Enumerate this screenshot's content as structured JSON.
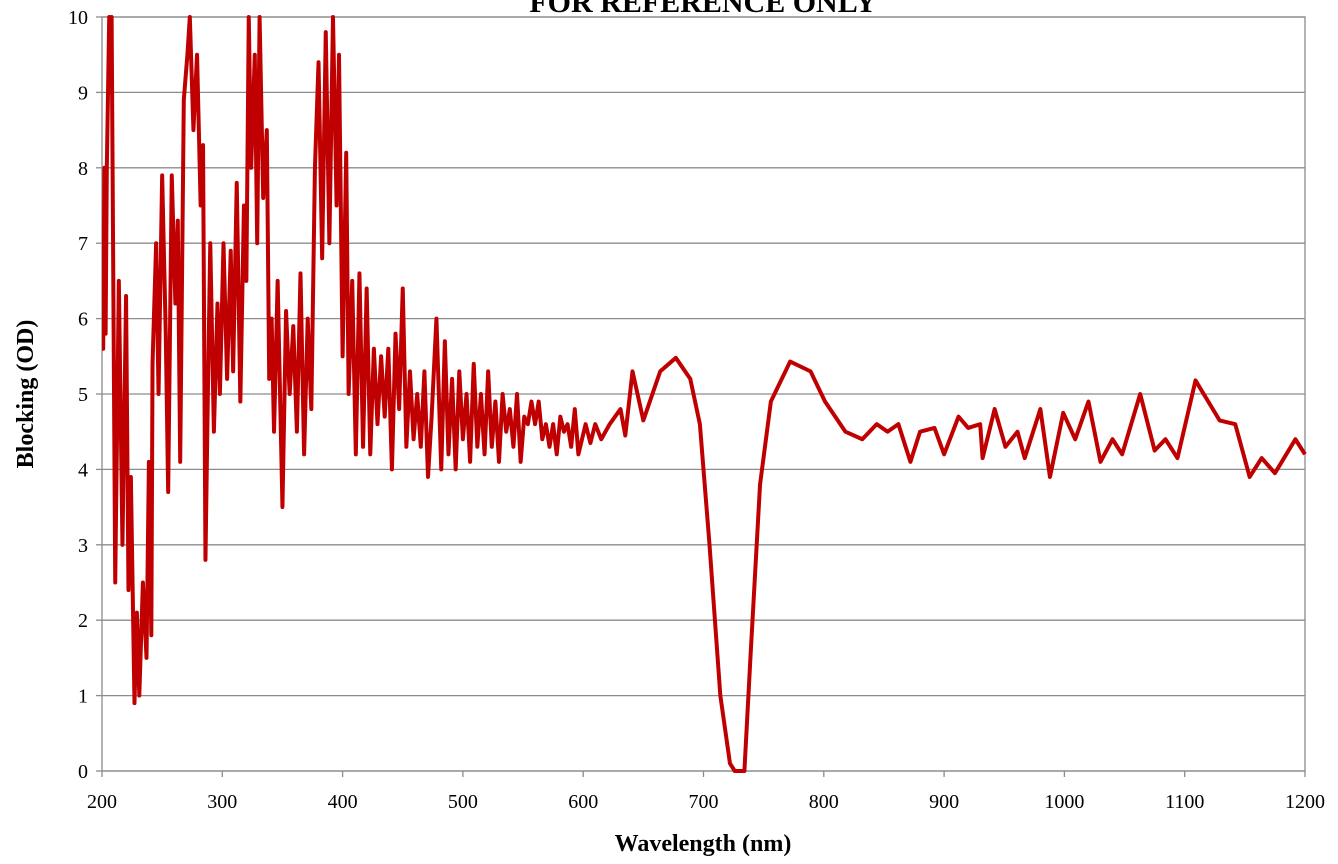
{
  "chart_data": {
    "type": "line",
    "title": "FOR REFERENCE ONLY",
    "x_label": "Wavelength (nm)",
    "y_label": "Blocking (OD)",
    "xlim": [
      200,
      1200
    ],
    "xticks": [
      200,
      300,
      400,
      500,
      600,
      700,
      800,
      900,
      1000,
      1100,
      1200
    ],
    "ylim": [
      0,
      10
    ],
    "yticks": [
      0,
      1,
      2,
      3,
      4,
      5,
      6,
      7,
      8,
      9,
      10
    ],
    "grid": true,
    "x": [
      200,
      201,
      202,
      203,
      204,
      206,
      207,
      208,
      211,
      214,
      217,
      220,
      222,
      224,
      227,
      229,
      231,
      234,
      237,
      239,
      241,
      242,
      245,
      247,
      250,
      253,
      255,
      258,
      261,
      263,
      265,
      268,
      271,
      273,
      276,
      279,
      282,
      284,
      286,
      288,
      290,
      293,
      296,
      298,
      301,
      304,
      307,
      309,
      312,
      315,
      318,
      320,
      322,
      324,
      327,
      329,
      331,
      334,
      337,
      339,
      341,
      343,
      346,
      350,
      353,
      356,
      359,
      362,
      365,
      368,
      371,
      374,
      377,
      380,
      383,
      386,
      389,
      392,
      395,
      397,
      400,
      403,
      405,
      408,
      411,
      414,
      417,
      420,
      423,
      426,
      429,
      432,
      435,
      438,
      441,
      444,
      447,
      450,
      453,
      456,
      459,
      462,
      465,
      468,
      471,
      474,
      478,
      482,
      485,
      488,
      491,
      494,
      497,
      500,
      503,
      506,
      509,
      512,
      515,
      518,
      521,
      524,
      527,
      530,
      533,
      536,
      539,
      542,
      545,
      548,
      551,
      554,
      557,
      560,
      563,
      566,
      569,
      572,
      575,
      578,
      581,
      584,
      587,
      590,
      593,
      596,
      599,
      602,
      606,
      610,
      615,
      622,
      631,
      635,
      641,
      650,
      664,
      677,
      689,
      697,
      705,
      714,
      722,
      726,
      734,
      739,
      747,
      756,
      772,
      789,
      801,
      818,
      832,
      844,
      853,
      862,
      872,
      880,
      892,
      900,
      912,
      920,
      930,
      932,
      942,
      951,
      961,
      967,
      980,
      988,
      999,
      1009,
      1020,
      1030,
      1040,
      1048,
      1063,
      1075,
      1084,
      1094,
      1109,
      1129,
      1142,
      1154,
      1164,
      1175,
      1192,
      1200
    ],
    "series": [
      {
        "color": "#c00000",
        "values": [
          6.5,
          5.6,
          8,
          5.8,
          8,
          10,
          9,
          10,
          2.5,
          6.5,
          3,
          6.3,
          2.4,
          3.9,
          0.9,
          2.1,
          1.0,
          2.5,
          1.5,
          4.1,
          1.8,
          5.4,
          7,
          5,
          7.9,
          5.8,
          3.7,
          7.9,
          6.2,
          7.3,
          4.1,
          8.9,
          9.5,
          10,
          8.5,
          9.5,
          7.5,
          8.3,
          2.8,
          5,
          7,
          4.5,
          6.2,
          5,
          7,
          5.2,
          6.9,
          5.3,
          7.8,
          4.9,
          7.5,
          6.5,
          10,
          8,
          9.5,
          7,
          10,
          7.6,
          8.5,
          5.2,
          6,
          4.5,
          6.5,
          3.5,
          6.1,
          5,
          5.9,
          4.5,
          6.6,
          4.2,
          6,
          4.8,
          8,
          9.4,
          6.8,
          9.8,
          7,
          10,
          7.5,
          9.5,
          5.5,
          8.2,
          5,
          6.5,
          4.2,
          6.6,
          4.3,
          6.4,
          4.2,
          5.6,
          4.6,
          5.5,
          4.7,
          5.6,
          4.0,
          5.8,
          4.8,
          6.4,
          4.3,
          5.3,
          4.4,
          5.0,
          4.3,
          5.3,
          3.9,
          4.7,
          6.0,
          4.0,
          5.7,
          4.2,
          5.2,
          4.0,
          5.3,
          4.4,
          5.0,
          4.1,
          5.4,
          4.3,
          5.0,
          4.2,
          5.3,
          4.3,
          4.9,
          4.1,
          5.0,
          4.5,
          4.8,
          4.3,
          5.0,
          4.1,
          4.7,
          4.6,
          4.9,
          4.6,
          4.9,
          4.4,
          4.6,
          4.3,
          4.6,
          4.2,
          4.7,
          4.5,
          4.6,
          4.3,
          4.8,
          4.2,
          4.4,
          4.6,
          4.35,
          4.6,
          4.4,
          4.6,
          4.8,
          4.45,
          5.3,
          4.65,
          5.3,
          5.48,
          5.2,
          4.6,
          3.0,
          1.0,
          0.1,
          0,
          0,
          1.5,
          3.8,
          4.9,
          5.43,
          5.3,
          4.9,
          4.5,
          4.4,
          4.6,
          4.5,
          4.6,
          4.1,
          4.5,
          4.55,
          4.2,
          4.7,
          4.55,
          4.6,
          4.15,
          4.8,
          4.3,
          4.5,
          4.15,
          4.8,
          3.9,
          4.75,
          4.4,
          4.9,
          4.1,
          4.4,
          4.2,
          5.0,
          4.25,
          4.4,
          4.15,
          5.18,
          4.65,
          4.6,
          3.9,
          4.15,
          3.95,
          4.4,
          4.2
        ]
      }
    ]
  }
}
